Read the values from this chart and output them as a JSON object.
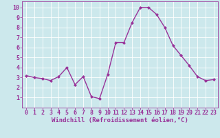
{
  "x": [
    0,
    1,
    2,
    3,
    4,
    5,
    6,
    7,
    8,
    9,
    10,
    11,
    12,
    13,
    14,
    15,
    16,
    17,
    18,
    19,
    20,
    21,
    22,
    23
  ],
  "y": [
    3.2,
    3.0,
    2.9,
    2.7,
    3.1,
    4.0,
    2.3,
    3.1,
    1.1,
    0.9,
    3.3,
    6.5,
    6.5,
    8.5,
    10.0,
    10.0,
    9.3,
    8.0,
    6.2,
    5.2,
    4.2,
    3.1,
    2.7,
    2.8
  ],
  "line_color": "#993399",
  "marker": "D",
  "marker_size": 2.0,
  "linewidth": 1.0,
  "xlabel": "Windchill (Refroidissement éolien,°C)",
  "xlabel_fontsize": 6.5,
  "xlim": [
    -0.5,
    23.5
  ],
  "ylim": [
    0,
    10.6
  ],
  "yticks": [
    1,
    2,
    3,
    4,
    5,
    6,
    7,
    8,
    9,
    10
  ],
  "xticks": [
    0,
    1,
    2,
    3,
    4,
    5,
    6,
    7,
    8,
    9,
    10,
    11,
    12,
    13,
    14,
    15,
    16,
    17,
    18,
    19,
    20,
    21,
    22,
    23
  ],
  "bg_color": "#cce8ec",
  "grid_color": "#ffffff",
  "tick_color": "#993399",
  "tick_fontsize": 6.0,
  "spine_color": "#993399",
  "xlabel_color": "#993399",
  "xlabel_fontweight": "bold"
}
